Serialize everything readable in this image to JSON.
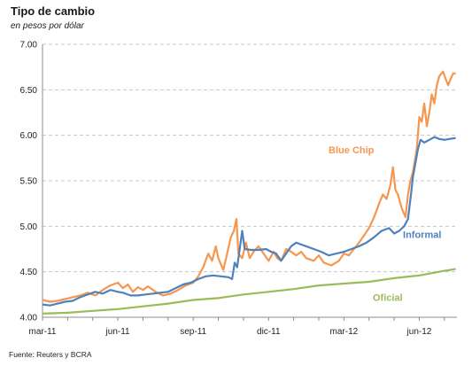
{
  "title": "Tipo de cambio",
  "subtitle": "en pesos por dólar",
  "source": "Fuente: Reuters y BCRA",
  "chart_data": {
    "type": "line",
    "title": "Tipo de cambio",
    "subtitle": "en pesos por dólar",
    "ylim": [
      4.0,
      7.0
    ],
    "y_ticks": [
      "4.00",
      "4.50",
      "5.00",
      "5.50",
      "6.00",
      "6.50",
      "7.00"
    ],
    "y_tick_values": [
      4.0,
      4.5,
      5.0,
      5.5,
      6.0,
      6.5,
      7.0
    ],
    "x_ticks": [
      "mar-11",
      "jun-11",
      "sep-11",
      "dic-11",
      "mar-12",
      "jun-12"
    ],
    "x_tick_values": [
      0,
      3,
      6,
      9,
      12,
      15
    ],
    "x_unit": "months since mar-11",
    "xlim": [
      0,
      16.5
    ],
    "grid": "horizontal dashed",
    "legend": "inline labels",
    "series": [
      {
        "name": "Blue Chip",
        "color": "#f7964f",
        "points": [
          [
            0.0,
            4.19
          ],
          [
            0.3,
            4.17
          ],
          [
            0.6,
            4.18
          ],
          [
            0.9,
            4.2
          ],
          [
            1.2,
            4.22
          ],
          [
            1.5,
            4.24
          ],
          [
            1.8,
            4.27
          ],
          [
            2.1,
            4.24
          ],
          [
            2.4,
            4.3
          ],
          [
            2.7,
            4.35
          ],
          [
            3.0,
            4.38
          ],
          [
            3.2,
            4.32
          ],
          [
            3.4,
            4.36
          ],
          [
            3.6,
            4.28
          ],
          [
            3.8,
            4.33
          ],
          [
            4.0,
            4.3
          ],
          [
            4.2,
            4.34
          ],
          [
            4.5,
            4.28
          ],
          [
            4.8,
            4.24
          ],
          [
            5.1,
            4.26
          ],
          [
            5.4,
            4.3
          ],
          [
            5.7,
            4.35
          ],
          [
            6.0,
            4.38
          ],
          [
            6.2,
            4.45
          ],
          [
            6.4,
            4.55
          ],
          [
            6.6,
            4.7
          ],
          [
            6.75,
            4.62
          ],
          [
            6.9,
            4.78
          ],
          [
            7.0,
            4.65
          ],
          [
            7.2,
            4.52
          ],
          [
            7.35,
            4.7
          ],
          [
            7.5,
            4.88
          ],
          [
            7.62,
            4.95
          ],
          [
            7.72,
            5.08
          ],
          [
            7.8,
            4.7
          ],
          [
            7.95,
            4.65
          ],
          [
            8.1,
            4.82
          ],
          [
            8.25,
            4.65
          ],
          [
            8.4,
            4.72
          ],
          [
            8.6,
            4.78
          ],
          [
            8.8,
            4.7
          ],
          [
            9.0,
            4.62
          ],
          [
            9.2,
            4.72
          ],
          [
            9.35,
            4.65
          ],
          [
            9.5,
            4.62
          ],
          [
            9.7,
            4.75
          ],
          [
            9.9,
            4.72
          ],
          [
            10.1,
            4.68
          ],
          [
            10.3,
            4.72
          ],
          [
            10.5,
            4.65
          ],
          [
            10.8,
            4.62
          ],
          [
            11.0,
            4.68
          ],
          [
            11.2,
            4.6
          ],
          [
            11.5,
            4.57
          ],
          [
            11.8,
            4.62
          ],
          [
            12.0,
            4.7
          ],
          [
            12.2,
            4.68
          ],
          [
            12.4,
            4.75
          ],
          [
            12.6,
            4.82
          ],
          [
            12.8,
            4.9
          ],
          [
            13.0,
            4.98
          ],
          [
            13.2,
            5.1
          ],
          [
            13.4,
            5.25
          ],
          [
            13.55,
            5.35
          ],
          [
            13.7,
            5.3
          ],
          [
            13.85,
            5.45
          ],
          [
            13.95,
            5.65
          ],
          [
            14.05,
            5.4
          ],
          [
            14.15,
            5.35
          ],
          [
            14.3,
            5.2
          ],
          [
            14.45,
            5.1
          ],
          [
            14.55,
            5.35
          ],
          [
            14.65,
            5.5
          ],
          [
            14.75,
            5.6
          ],
          [
            14.9,
            5.85
          ],
          [
            15.0,
            6.2
          ],
          [
            15.1,
            6.15
          ],
          [
            15.2,
            6.35
          ],
          [
            15.3,
            6.1
          ],
          [
            15.4,
            6.25
          ],
          [
            15.5,
            6.45
          ],
          [
            15.6,
            6.35
          ],
          [
            15.7,
            6.55
          ],
          [
            15.8,
            6.65
          ],
          [
            15.95,
            6.7
          ],
          [
            16.05,
            6.62
          ],
          [
            16.15,
            6.55
          ],
          [
            16.25,
            6.62
          ],
          [
            16.35,
            6.68
          ],
          [
            16.45,
            6.68
          ]
        ]
      },
      {
        "name": "Informal",
        "color": "#4f81bd",
        "points": [
          [
            0.0,
            4.14
          ],
          [
            0.3,
            4.13
          ],
          [
            0.6,
            4.15
          ],
          [
            0.9,
            4.17
          ],
          [
            1.2,
            4.18
          ],
          [
            1.5,
            4.22
          ],
          [
            1.8,
            4.25
          ],
          [
            2.1,
            4.28
          ],
          [
            2.4,
            4.26
          ],
          [
            2.7,
            4.3
          ],
          [
            3.0,
            4.28
          ],
          [
            3.2,
            4.27
          ],
          [
            3.5,
            4.24
          ],
          [
            3.8,
            4.24
          ],
          [
            4.1,
            4.25
          ],
          [
            4.4,
            4.26
          ],
          [
            4.7,
            4.27
          ],
          [
            5.0,
            4.28
          ],
          [
            5.3,
            4.32
          ],
          [
            5.6,
            4.36
          ],
          [
            5.9,
            4.38
          ],
          [
            6.2,
            4.42
          ],
          [
            6.5,
            4.45
          ],
          [
            6.8,
            4.46
          ],
          [
            7.1,
            4.45
          ],
          [
            7.4,
            4.44
          ],
          [
            7.55,
            4.42
          ],
          [
            7.65,
            4.6
          ],
          [
            7.75,
            4.55
          ],
          [
            7.85,
            4.75
          ],
          [
            7.95,
            4.95
          ],
          [
            8.05,
            4.75
          ],
          [
            8.3,
            4.74
          ],
          [
            8.6,
            4.74
          ],
          [
            8.9,
            4.75
          ],
          [
            9.1,
            4.72
          ],
          [
            9.3,
            4.7
          ],
          [
            9.5,
            4.62
          ],
          [
            9.7,
            4.7
          ],
          [
            9.9,
            4.78
          ],
          [
            10.1,
            4.82
          ],
          [
            10.3,
            4.8
          ],
          [
            10.5,
            4.78
          ],
          [
            10.8,
            4.75
          ],
          [
            11.1,
            4.72
          ],
          [
            11.4,
            4.68
          ],
          [
            11.7,
            4.7
          ],
          [
            12.0,
            4.72
          ],
          [
            12.3,
            4.75
          ],
          [
            12.6,
            4.78
          ],
          [
            12.9,
            4.82
          ],
          [
            13.2,
            4.88
          ],
          [
            13.5,
            4.95
          ],
          [
            13.8,
            4.98
          ],
          [
            14.0,
            4.92
          ],
          [
            14.2,
            4.95
          ],
          [
            14.4,
            5.0
          ],
          [
            14.55,
            5.08
          ],
          [
            14.65,
            5.3
          ],
          [
            14.75,
            5.55
          ],
          [
            14.85,
            5.7
          ],
          [
            14.95,
            5.85
          ],
          [
            15.05,
            5.95
          ],
          [
            15.2,
            5.92
          ],
          [
            15.4,
            5.95
          ],
          [
            15.6,
            5.98
          ],
          [
            15.8,
            5.96
          ],
          [
            16.0,
            5.95
          ],
          [
            16.2,
            5.96
          ],
          [
            16.45,
            5.97
          ]
        ]
      },
      {
        "name": "Oficial",
        "color": "#9bbb59",
        "points": [
          [
            0.0,
            4.04
          ],
          [
            1.0,
            4.05
          ],
          [
            2.0,
            4.07
          ],
          [
            3.0,
            4.09
          ],
          [
            4.0,
            4.12
          ],
          [
            5.0,
            4.15
          ],
          [
            6.0,
            4.19
          ],
          [
            7.0,
            4.21
          ],
          [
            8.0,
            4.25
          ],
          [
            9.0,
            4.28
          ],
          [
            10.0,
            4.31
          ],
          [
            11.0,
            4.35
          ],
          [
            12.0,
            4.37
          ],
          [
            13.0,
            4.39
          ],
          [
            14.0,
            4.43
          ],
          [
            15.0,
            4.46
          ],
          [
            16.0,
            4.51
          ],
          [
            16.45,
            4.53
          ]
        ]
      }
    ]
  }
}
